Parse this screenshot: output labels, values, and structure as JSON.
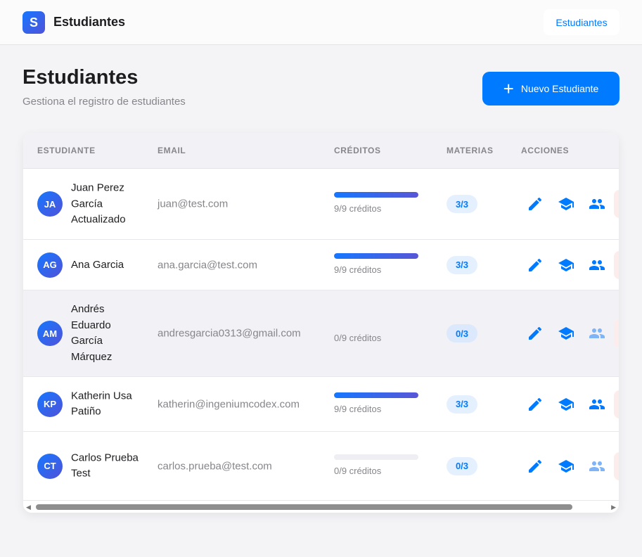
{
  "nav": {
    "logo_letter": "S",
    "brand": "Estudiantes",
    "link": "Estudiantes"
  },
  "header": {
    "title": "Estudiantes",
    "subtitle": "Gestiona el registro de estudiantes",
    "new_button": "Nuevo Estudiante"
  },
  "colors": {
    "accent": "#007aff",
    "gradient_end": "#5856d6",
    "delete_bg": "#fdecec"
  },
  "table": {
    "columns": [
      "ESTUDIANTE",
      "EMAIL",
      "CRÉDITOS",
      "MATERIAS",
      "ACCIONES"
    ],
    "rows": [
      {
        "initials": "JA",
        "name": "Juan Perez García Actualizado",
        "email": "juan@test.com",
        "credits_text": "9/9 créditos",
        "credits_fraction": 1,
        "bar_visible": true,
        "subjects": "3/3",
        "groups_active": true
      },
      {
        "initials": "AG",
        "name": "Ana Garcia",
        "email": "ana.garcia@test.com",
        "credits_text": "9/9 créditos",
        "credits_fraction": 1,
        "bar_visible": true,
        "subjects": "3/3",
        "groups_active": true
      },
      {
        "initials": "AM",
        "name": "Andrés Eduardo García Márquez",
        "email": "andresgarcia0313@gmail.com",
        "credits_text": "0/9 créditos",
        "credits_fraction": 0,
        "bar_visible": false,
        "subjects": "0/3",
        "groups_active": false,
        "hovered": true
      },
      {
        "initials": "KP",
        "name": "Katherin Usa Patiño",
        "email": "katherin@ingeniumcodex.com",
        "credits_text": "9/9 créditos",
        "credits_fraction": 1,
        "bar_visible": true,
        "subjects": "3/3",
        "groups_active": true
      },
      {
        "initials": "CT",
        "name": "Carlos Prueba Test",
        "email": "carlos.prueba@test.com",
        "credits_text": "0/9 créditos",
        "credits_fraction": 0,
        "bar_visible": true,
        "subjects": "0/3",
        "groups_active": false
      }
    ],
    "actions": [
      "edit-icon",
      "graduation-cap-icon",
      "groups-icon",
      "delete-button"
    ]
  }
}
